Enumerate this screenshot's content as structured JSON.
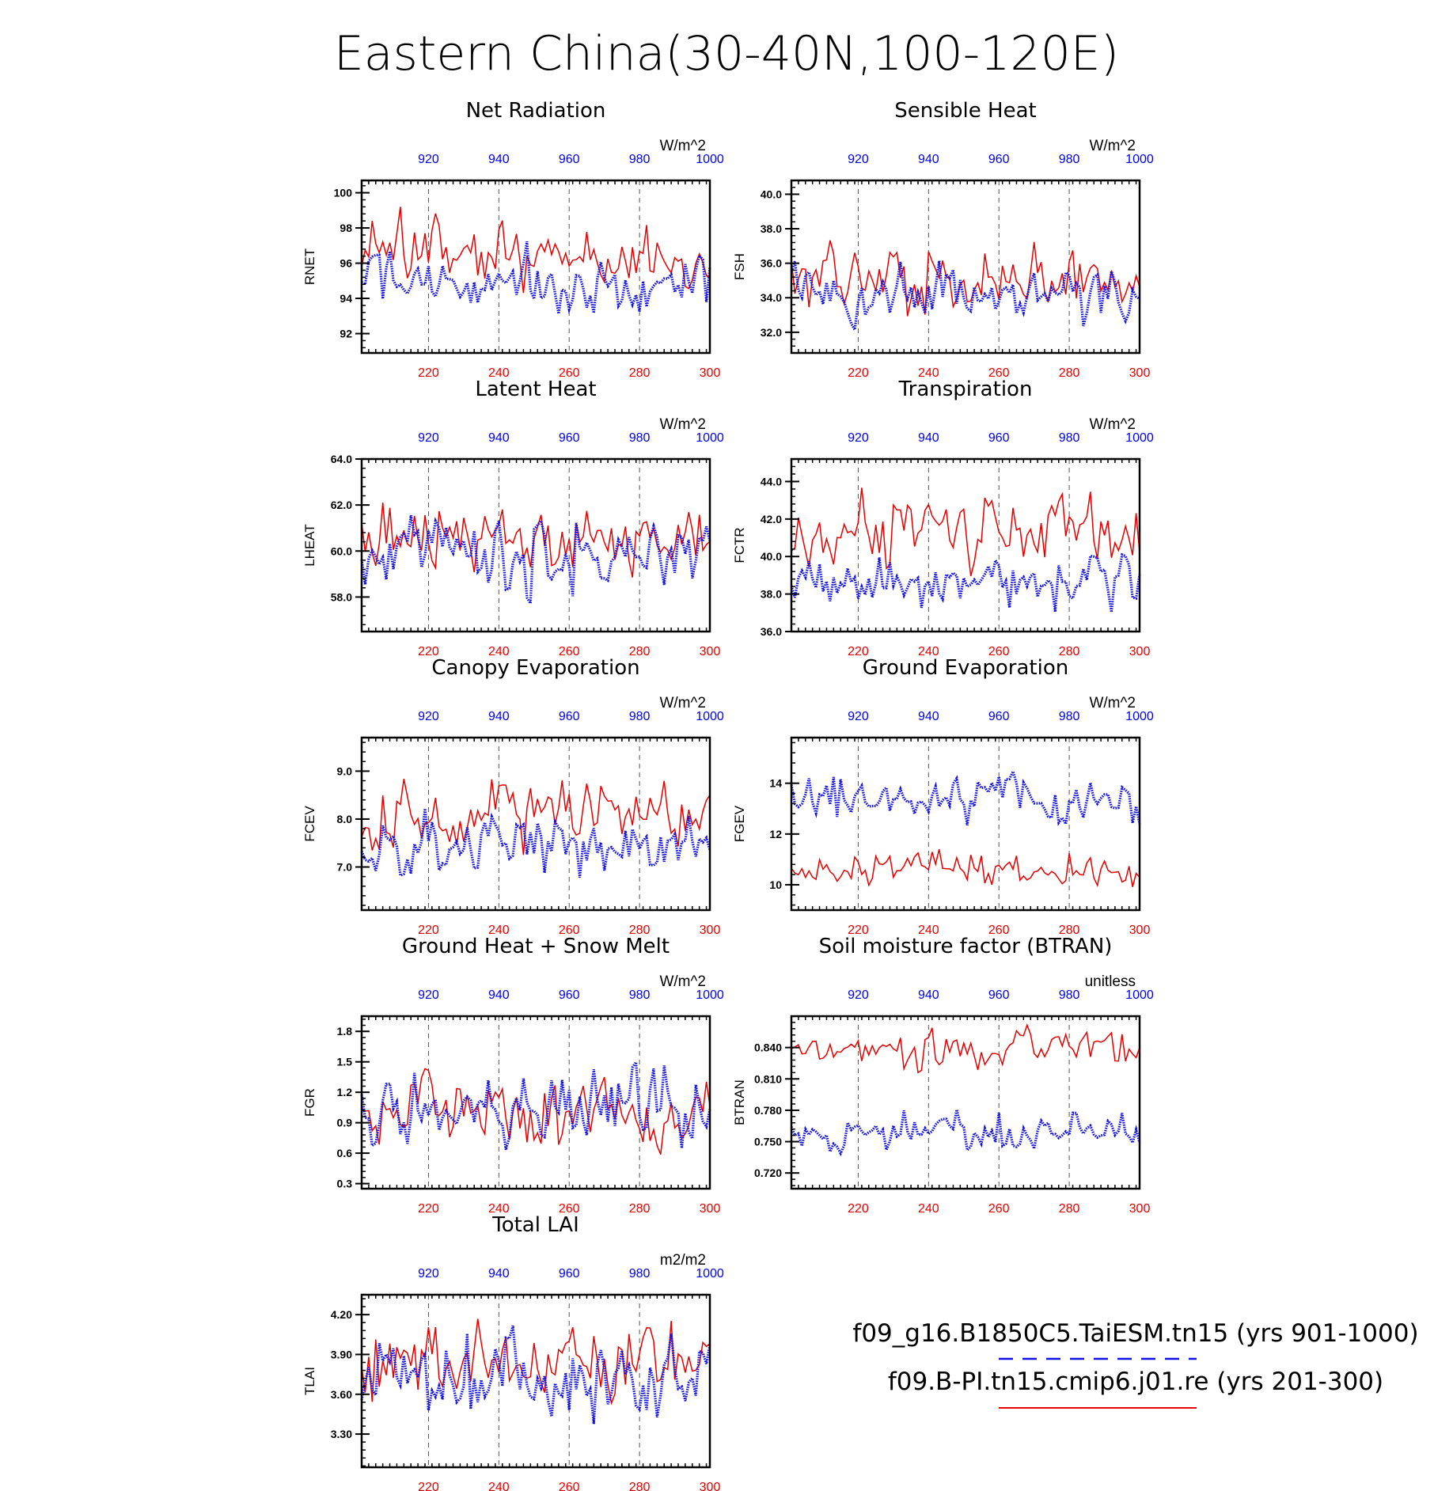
{
  "title": "Eastern China(30-40N,100-120E)",
  "colors": {
    "series_red": "#e60000",
    "series_blue": "#1010e6",
    "axis": "#000000"
  },
  "legend": {
    "blue_label": "f09_g16.B1850C5.TaiESM.tn15 (yrs 901-1000)",
    "red_label": "f09.B-PI.tn15.cmip6.j01.re (yrs 201-300)"
  },
  "chart_data": [
    {
      "id": "rnet",
      "type": "line",
      "title": "Net Radiation",
      "ylabel": "RNET",
      "units": "W/m^2",
      "x_bottom": {
        "label": "",
        "range": [
          201,
          300
        ],
        "ticks": [
          "220",
          "240",
          "260",
          "280",
          "300"
        ]
      },
      "x_top": {
        "label": "",
        "range": [
          901,
          1000
        ],
        "ticks": [
          "920",
          "940",
          "960",
          "980",
          "1000"
        ]
      },
      "ylim": [
        90.9,
        100.7
      ],
      "yticks": [
        92,
        94,
        96,
        98,
        100
      ],
      "ytick_labels": [
        "92",
        "94",
        "96",
        "98",
        "100"
      ],
      "grid": "dashed vertical at 20-yr ticks",
      "series": [
        {
          "name": "f09.B-PI.tn15.cmip6.j01.re (yrs 201-300)",
          "color": "red",
          "style": "solid",
          "mean": 96.4,
          "amp": 1.9,
          "seed": 11
        },
        {
          "name": "f09_g16.B1850C5.TaiESM.tn15 (yrs 901-1000)",
          "color": "blue",
          "style": "dotted",
          "mean": 94.8,
          "amp": 1.8,
          "seed": 12
        }
      ]
    },
    {
      "id": "fsh",
      "type": "line",
      "title": "Sensible Heat",
      "ylabel": "FSH",
      "units": "W/m^2",
      "x_bottom": {
        "label": "",
        "range": [
          201,
          300
        ],
        "ticks": [
          "220",
          "240",
          "260",
          "280",
          "300"
        ]
      },
      "x_top": {
        "label": "",
        "range": [
          901,
          1000
        ],
        "ticks": [
          "920",
          "940",
          "960",
          "980",
          "1000"
        ]
      },
      "ylim": [
        30.8,
        40.8
      ],
      "yticks": [
        32,
        34,
        36,
        38,
        40
      ],
      "ytick_labels": [
        "32.0",
        "34.0",
        "36.0",
        "38.0",
        "40.0"
      ],
      "grid": "dashed vertical at 20-yr ticks",
      "series": [
        {
          "name": "f09.B-PI.tn15.cmip6.j01.re (yrs 201-300)",
          "color": "red",
          "style": "solid",
          "mean": 35.1,
          "amp": 1.9,
          "seed": 21
        },
        {
          "name": "f09_g16.B1850C5.TaiESM.tn15 (yrs 901-1000)",
          "color": "blue",
          "style": "dotted",
          "mean": 34.0,
          "amp": 1.6,
          "seed": 22
        }
      ]
    },
    {
      "id": "lheat",
      "type": "line",
      "title": "Latent Heat",
      "ylabel": "LHEAT",
      "units": "W/m^2",
      "x_bottom": {
        "label": "",
        "range": [
          201,
          300
        ],
        "ticks": [
          "220",
          "240",
          "260",
          "280",
          "300"
        ]
      },
      "x_top": {
        "label": "",
        "range": [
          901,
          1000
        ],
        "ticks": [
          "920",
          "940",
          "960",
          "980",
          "1000"
        ]
      },
      "ylim": [
        56.5,
        64.0
      ],
      "yticks": [
        58,
        60,
        62,
        64
      ],
      "ytick_labels": [
        "58.0",
        "60.0",
        "62.0",
        "64.0"
      ],
      "grid": "dashed vertical at 20-yr ticks",
      "series": [
        {
          "name": "f09.B-PI.tn15.cmip6.j01.re (yrs 201-300)",
          "color": "red",
          "style": "solid",
          "mean": 60.5,
          "amp": 1.5,
          "seed": 31
        },
        {
          "name": "f09_g16.B1850C5.TaiESM.tn15 (yrs 901-1000)",
          "color": "blue",
          "style": "dotted",
          "mean": 59.8,
          "amp": 1.6,
          "seed": 32
        }
      ]
    },
    {
      "id": "fctr",
      "type": "line",
      "title": "Transpiration",
      "ylabel": "FCTR",
      "units": "W/m^2",
      "x_bottom": {
        "label": "",
        "range": [
          201,
          300
        ],
        "ticks": [
          "220",
          "240",
          "260",
          "280",
          "300"
        ]
      },
      "x_top": {
        "label": "",
        "range": [
          901,
          1000
        ],
        "ticks": [
          "920",
          "940",
          "960",
          "980",
          "1000"
        ]
      },
      "ylim": [
        36.0,
        45.2
      ],
      "yticks": [
        36,
        38,
        40,
        42,
        44
      ],
      "ytick_labels": [
        "36.0",
        "38.0",
        "40.0",
        "42.0",
        "44.0"
      ],
      "grid": "dashed vertical at 20-yr ticks",
      "series": [
        {
          "name": "f09.B-PI.tn15.cmip6.j01.re (yrs 201-300)",
          "color": "red",
          "style": "solid",
          "mean": 41.4,
          "amp": 1.9,
          "seed": 41
        },
        {
          "name": "f09_g16.B1850C5.TaiESM.tn15 (yrs 901-1000)",
          "color": "blue",
          "style": "dotted",
          "mean": 38.7,
          "amp": 1.3,
          "seed": 42
        }
      ]
    },
    {
      "id": "fcev",
      "type": "line",
      "title": "Canopy Evaporation",
      "ylabel": "FCEV",
      "units": "W/m^2",
      "x_bottom": {
        "label": "",
        "range": [
          201,
          300
        ],
        "ticks": [
          "220",
          "240",
          "260",
          "280",
          "300"
        ]
      },
      "x_top": {
        "label": "",
        "range": [
          901,
          1000
        ],
        "ticks": [
          "920",
          "940",
          "960",
          "980",
          "1000"
        ]
      },
      "ylim": [
        6.1,
        9.7
      ],
      "yticks": [
        7,
        8,
        9
      ],
      "ytick_labels": [
        "7.0",
        "8.0",
        "9.0"
      ],
      "grid": "dashed vertical at 20-yr ticks",
      "series": [
        {
          "name": "f09.B-PI.tn15.cmip6.j01.re (yrs 201-300)",
          "color": "red",
          "style": "solid",
          "mean": 8.1,
          "amp": 0.7,
          "seed": 51
        },
        {
          "name": "f09_g16.B1850C5.TaiESM.tn15 (yrs 901-1000)",
          "color": "blue",
          "style": "dotted",
          "mean": 7.5,
          "amp": 0.6,
          "seed": 52
        }
      ]
    },
    {
      "id": "fgev",
      "type": "line",
      "title": "Ground Evaporation",
      "ylabel": "FGEV",
      "units": "W/m^2",
      "x_bottom": {
        "label": "",
        "range": [
          201,
          300
        ],
        "ticks": [
          "220",
          "240",
          "260",
          "280",
          "300"
        ]
      },
      "x_top": {
        "label": "",
        "range": [
          901,
          1000
        ],
        "ticks": [
          "920",
          "940",
          "960",
          "980",
          "1000"
        ]
      },
      "ylim": [
        9.0,
        15.8
      ],
      "yticks": [
        10,
        12,
        14
      ],
      "ytick_labels": [
        "10",
        "12",
        "14"
      ],
      "grid": "dashed vertical at 20-yr ticks",
      "series": [
        {
          "name": "f09.B-PI.tn15.cmip6.j01.re (yrs 201-300)",
          "color": "red",
          "style": "solid",
          "mean": 10.5,
          "amp": 0.7,
          "seed": 61
        },
        {
          "name": "f09_g16.B1850C5.TaiESM.tn15 (yrs 901-1000)",
          "color": "blue",
          "style": "dotted",
          "mean": 13.4,
          "amp": 0.9,
          "seed": 62
        }
      ]
    },
    {
      "id": "fgr",
      "type": "line",
      "title": "Ground Heat + Snow Melt",
      "ylabel": "FGR",
      "units": "W/m^2",
      "x_bottom": {
        "label": "",
        "range": [
          201,
          300
        ],
        "ticks": [
          "220",
          "240",
          "260",
          "280",
          "300"
        ]
      },
      "x_top": {
        "label": "",
        "range": [
          901,
          1000
        ],
        "ticks": [
          "920",
          "940",
          "960",
          "980",
          "1000"
        ]
      },
      "ylim": [
        0.25,
        1.95
      ],
      "yticks": [
        0.3,
        0.6,
        0.9,
        1.2,
        1.5,
        1.8
      ],
      "ytick_labels": [
        "0.3",
        "0.6",
        "0.9",
        "1.2",
        "1.5",
        "1.8"
      ],
      "grid": "dashed vertical at 20-yr ticks",
      "series": [
        {
          "name": "f09.B-PI.tn15.cmip6.j01.re (yrs 201-300)",
          "color": "red",
          "style": "solid",
          "mean": 1.0,
          "amp": 0.35,
          "seed": 71
        },
        {
          "name": "f09_g16.B1850C5.TaiESM.tn15 (yrs 901-1000)",
          "color": "blue",
          "style": "dotted",
          "mean": 1.0,
          "amp": 0.35,
          "seed": 72
        }
      ]
    },
    {
      "id": "btran",
      "type": "line",
      "title": "Soil moisture factor (BTRAN)",
      "ylabel": "BTRAN",
      "units": "unitless",
      "x_bottom": {
        "label": "",
        "range": [
          201,
          300
        ],
        "ticks": [
          "220",
          "240",
          "260",
          "280",
          "300"
        ]
      },
      "x_top": {
        "label": "",
        "range": [
          901,
          1000
        ],
        "ticks": [
          "920",
          "940",
          "960",
          "980",
          "1000"
        ]
      },
      "ylim": [
        0.705,
        0.87
      ],
      "yticks": [
        0.72,
        0.75,
        0.78,
        0.81,
        0.84
      ],
      "ytick_labels": [
        "0.720",
        "0.750",
        "0.780",
        "0.810",
        "0.840"
      ],
      "grid": "dashed vertical at 20-yr ticks",
      "series": [
        {
          "name": "f09.B-PI.tn15.cmip6.j01.re (yrs 201-300)",
          "color": "red",
          "style": "solid",
          "mean": 0.838,
          "amp": 0.018,
          "seed": 81
        },
        {
          "name": "f09_g16.B1850C5.TaiESM.tn15 (yrs 901-1000)",
          "color": "blue",
          "style": "dotted",
          "mean": 0.757,
          "amp": 0.017,
          "seed": 82
        }
      ]
    },
    {
      "id": "tlai",
      "type": "line",
      "title": "Total LAI",
      "ylabel": "TLAI",
      "units": "m2/m2",
      "x_bottom": {
        "label": "",
        "range": [
          201,
          300
        ],
        "ticks": [
          "220",
          "240",
          "260",
          "280",
          "300"
        ]
      },
      "x_top": {
        "label": "",
        "range": [
          901,
          1000
        ],
        "ticks": [
          "920",
          "940",
          "960",
          "980",
          "1000"
        ]
      },
      "ylim": [
        3.05,
        4.35
      ],
      "yticks": [
        3.3,
        3.6,
        3.9,
        4.2
      ],
      "ytick_labels": [
        "3.30",
        "3.60",
        "3.90",
        "4.20"
      ],
      "grid": "dashed vertical at 20-yr ticks",
      "series": [
        {
          "name": "f09.B-PI.tn15.cmip6.j01.re (yrs 201-300)",
          "color": "red",
          "style": "solid",
          "mean": 3.82,
          "amp": 0.28,
          "seed": 91
        },
        {
          "name": "f09_g16.B1850C5.TaiESM.tn15 (yrs 901-1000)",
          "color": "blue",
          "style": "dotted",
          "mean": 3.75,
          "amp": 0.3,
          "seed": 92
        }
      ]
    }
  ]
}
